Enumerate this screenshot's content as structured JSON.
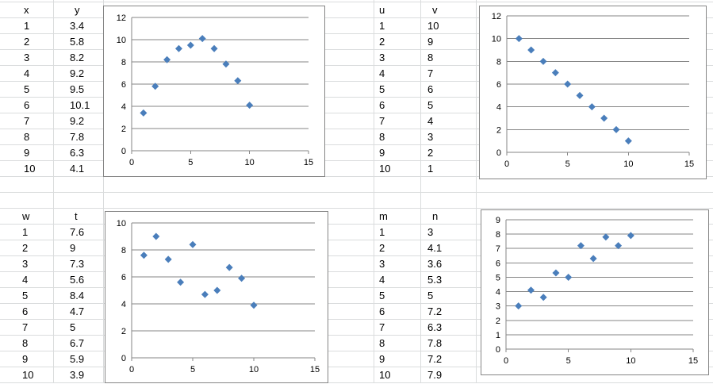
{
  "colors": {
    "marker": "#4a7ebb",
    "gridline": "#868686",
    "axis": "#868686",
    "cell_gridline": "#dadcdd"
  },
  "tables": [
    {
      "id": "xy",
      "headers": [
        "x",
        "y"
      ],
      "rows": [
        [
          "1",
          "3.4"
        ],
        [
          "2",
          "5.8"
        ],
        [
          "3",
          "8.2"
        ],
        [
          "4",
          "9.2"
        ],
        [
          "5",
          "9.5"
        ],
        [
          "6",
          "10.1"
        ],
        [
          "7",
          "9.2"
        ],
        [
          "8",
          "7.8"
        ],
        [
          "9",
          "6.3"
        ],
        [
          "10",
          "4.1"
        ]
      ]
    },
    {
      "id": "uv",
      "headers": [
        "u",
        "v"
      ],
      "rows": [
        [
          "1",
          "10"
        ],
        [
          "2",
          "9"
        ],
        [
          "3",
          "8"
        ],
        [
          "4",
          "7"
        ],
        [
          "5",
          "6"
        ],
        [
          "6",
          "5"
        ],
        [
          "7",
          "4"
        ],
        [
          "8",
          "3"
        ],
        [
          "9",
          "2"
        ],
        [
          "10",
          "1"
        ]
      ]
    },
    {
      "id": "wt",
      "headers": [
        "w",
        "t"
      ],
      "rows": [
        [
          "1",
          "7.6"
        ],
        [
          "2",
          "9"
        ],
        [
          "3",
          "7.3"
        ],
        [
          "4",
          "5.6"
        ],
        [
          "5",
          "8.4"
        ],
        [
          "6",
          "4.7"
        ],
        [
          "7",
          "5"
        ],
        [
          "8",
          "6.7"
        ],
        [
          "9",
          "5.9"
        ],
        [
          "10",
          "3.9"
        ]
      ]
    },
    {
      "id": "mn",
      "headers": [
        "m",
        "n"
      ],
      "rows": [
        [
          "1",
          "3"
        ],
        [
          "2",
          "4.1"
        ],
        [
          "3",
          "3.6"
        ],
        [
          "4",
          "5.3"
        ],
        [
          "5",
          "5"
        ],
        [
          "6",
          "7.2"
        ],
        [
          "7",
          "6.3"
        ],
        [
          "8",
          "7.8"
        ],
        [
          "9",
          "7.2"
        ],
        [
          "10",
          "7.9"
        ]
      ]
    }
  ],
  "chart_data": [
    {
      "type": "scatter",
      "title": "",
      "xlabel": "",
      "ylabel": "",
      "xlim": [
        0,
        15
      ],
      "ylim": [
        0,
        12
      ],
      "xticks": [
        0,
        5,
        10,
        15
      ],
      "yticks": [
        0,
        2,
        4,
        6,
        8,
        10,
        12
      ],
      "grid": "horizontal",
      "legend": "none",
      "x": [
        1,
        2,
        3,
        4,
        5,
        6,
        7,
        8,
        9,
        10
      ],
      "y": [
        3.4,
        5.8,
        8.2,
        9.2,
        9.5,
        10.1,
        9.2,
        7.8,
        6.3,
        4.1
      ]
    },
    {
      "type": "scatter",
      "title": "",
      "xlabel": "",
      "ylabel": "",
      "xlim": [
        0,
        15
      ],
      "ylim": [
        0,
        12
      ],
      "xticks": [
        0,
        5,
        10,
        15
      ],
      "yticks": [
        0,
        2,
        4,
        6,
        8,
        10,
        12
      ],
      "grid": "horizontal",
      "legend": "none",
      "x": [
        1,
        2,
        3,
        4,
        5,
        6,
        7,
        8,
        9,
        10
      ],
      "y": [
        10,
        9,
        8,
        7,
        6,
        5,
        4,
        3,
        2,
        1
      ]
    },
    {
      "type": "scatter",
      "title": "",
      "xlabel": "",
      "ylabel": "",
      "xlim": [
        0,
        15
      ],
      "ylim": [
        0,
        10
      ],
      "xticks": [
        0,
        5,
        10,
        15
      ],
      "yticks": [
        0,
        2,
        4,
        6,
        8,
        10
      ],
      "grid": "horizontal",
      "legend": "none",
      "x": [
        1,
        2,
        3,
        4,
        5,
        6,
        7,
        8,
        9,
        10
      ],
      "y": [
        7.6,
        9,
        7.3,
        5.6,
        8.4,
        4.7,
        5,
        6.7,
        5.9,
        3.9
      ]
    },
    {
      "type": "scatter",
      "title": "",
      "xlabel": "",
      "ylabel": "",
      "xlim": [
        0,
        15
      ],
      "ylim": [
        0,
        9
      ],
      "xticks": [
        0,
        5,
        10,
        15
      ],
      "yticks": [
        0,
        1,
        2,
        3,
        4,
        5,
        6,
        7,
        8,
        9
      ],
      "grid": "horizontal",
      "legend": "none",
      "x": [
        1,
        2,
        3,
        4,
        5,
        6,
        7,
        8,
        9,
        10
      ],
      "y": [
        3,
        4.1,
        3.6,
        5.3,
        5,
        7.2,
        6.3,
        7.8,
        7.2,
        7.9
      ]
    }
  ]
}
